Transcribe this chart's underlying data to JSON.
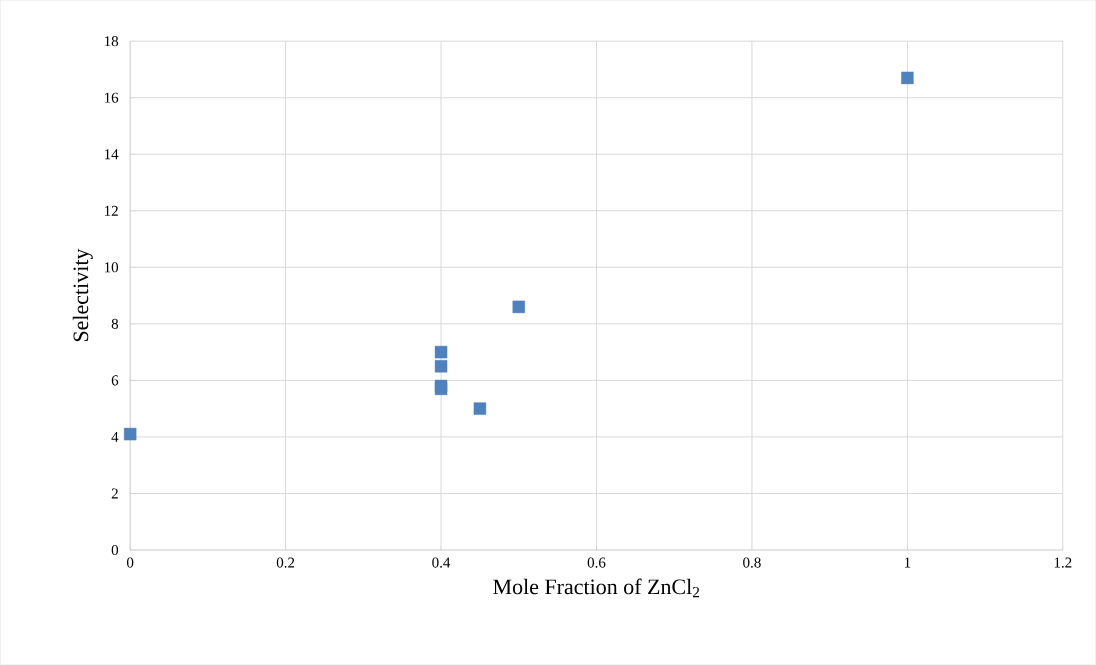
{
  "chart_data": {
    "type": "scatter",
    "xlabel": "Mole Fraction of ZnCl$_{2}$",
    "ylabel": "Selectivity",
    "x": [
      0,
      0.4,
      0.4,
      0.4,
      0.4,
      0.45,
      0.5,
      1
    ],
    "series": [
      {
        "color": "#4f81bd",
        "values": [
          4.1,
          7.0,
          6.5,
          5.8,
          5.7,
          5.0,
          8.6,
          16.7
        ]
      }
    ],
    "xlim": [
      0,
      1.2
    ],
    "xticks": [
      0,
      0.2,
      0.4,
      0.6,
      0.8,
      1,
      1.2
    ],
    "ylim": [
      0,
      18
    ],
    "yticks": [
      0,
      2,
      4,
      6,
      8,
      10,
      12,
      14,
      16,
      18
    ],
    "grid": true,
    "marker": "square"
  }
}
